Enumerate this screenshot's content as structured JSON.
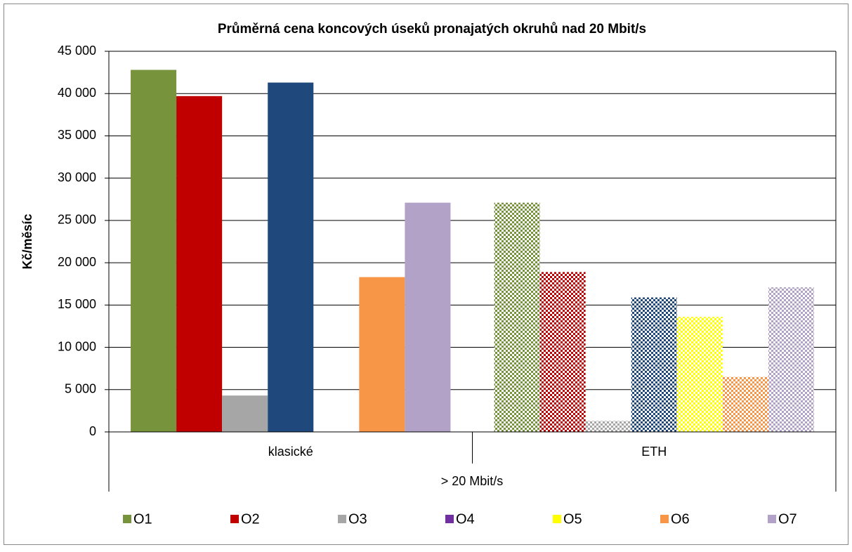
{
  "chart_data": {
    "type": "bar",
    "title": "Průměrná cena koncových úseků pronajatých okruhů nad  20 Mbit/s",
    "ylabel": "Kč/měsíc",
    "xgroup_label": ">  20 Mbit/s",
    "categories": [
      "klasické",
      "ETH"
    ],
    "patterned": [
      false,
      true
    ],
    "series": [
      {
        "name": "O1",
        "color": "#77933c",
        "values": [
          42800,
          27100
        ]
      },
      {
        "name": "O2",
        "color": "#c00000",
        "values": [
          39700,
          18900
        ]
      },
      {
        "name": "O3",
        "color": "#a6a6a6",
        "values": [
          4300,
          1300
        ]
      },
      {
        "name": "O4",
        "color": "#1f497d",
        "legend_color": "#7030a0",
        "values": [
          41300,
          15900
        ]
      },
      {
        "name": "O5",
        "color": "#ffff00",
        "values": [
          null,
          13600
        ]
      },
      {
        "name": "O6",
        "color": "#f79646",
        "values": [
          18300,
          6500
        ]
      },
      {
        "name": "O7",
        "color": "#b3a2c7",
        "values": [
          27100,
          17100
        ]
      }
    ],
    "ylim": [
      0,
      45000
    ],
    "yticks": [
      0,
      {
        "value": 5000,
        "label": "5 000"
      },
      {
        "value": 10000,
        "label": "10 000"
      },
      {
        "value": 15000,
        "label": "15 000"
      },
      {
        "value": 20000,
        "label": "20 000"
      },
      {
        "value": 25000,
        "label": "25 000"
      },
      {
        "value": 30000,
        "label": "30 000"
      },
      {
        "value": 35000,
        "label": "35 000"
      },
      {
        "value": 40000,
        "label": "40 000"
      },
      {
        "value": 45000,
        "label": "45 000"
      }
    ],
    "grid": true
  }
}
